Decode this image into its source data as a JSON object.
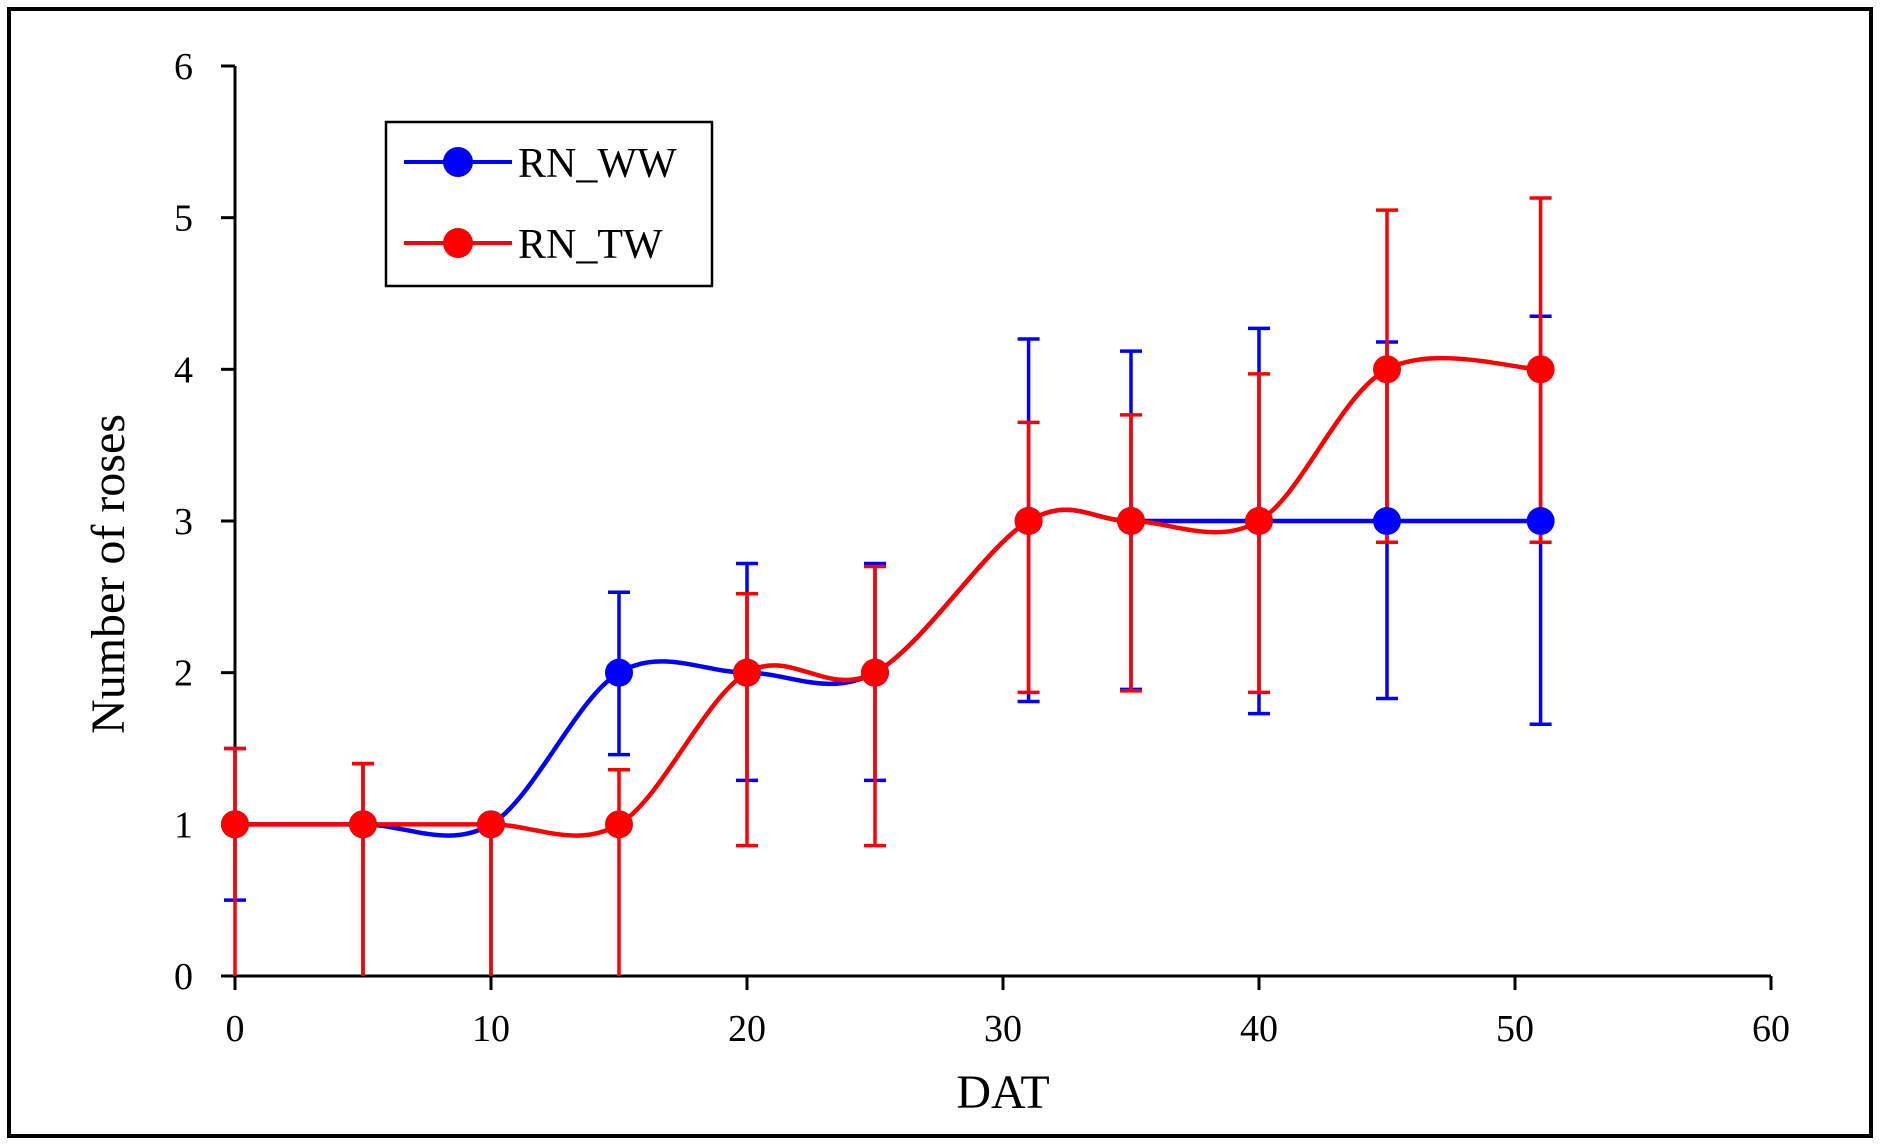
{
  "chart_data": {
    "type": "line",
    "title": "",
    "xlabel": "DAT",
    "ylabel": "Number of roses",
    "xlim": [
      0,
      60
    ],
    "ylim": [
      0,
      6
    ],
    "xticks": [
      0,
      10,
      20,
      30,
      40,
      50,
      60
    ],
    "yticks": [
      0,
      1,
      2,
      3,
      4,
      5,
      6
    ],
    "grid": false,
    "smooth": true,
    "legend_position": "top-left",
    "series": [
      {
        "name": "RN_WW",
        "color": "#0000ff",
        "x": [
          0,
          5,
          10,
          15,
          20,
          25,
          31,
          35,
          40,
          45,
          51
        ],
        "y": [
          1,
          1,
          1,
          2,
          2,
          2,
          3,
          3,
          3,
          3,
          3
        ],
        "err_low": [
          0.5,
          0,
          0,
          1.46,
          1.29,
          1.29,
          1.81,
          1.89,
          1.73,
          1.83,
          1.66
        ],
        "err_high": [
          1.5,
          1.4,
          1,
          2.53,
          2.72,
          2.72,
          4.2,
          4.12,
          4.27,
          4.18,
          4.35
        ]
      },
      {
        "name": "RN_TW",
        "color": "#ff0000",
        "x": [
          0,
          5,
          10,
          15,
          20,
          25,
          31,
          35,
          40,
          45,
          51
        ],
        "y": [
          1,
          1,
          1,
          1,
          2,
          2,
          3,
          3,
          3,
          4,
          4
        ],
        "err_low": [
          0,
          0,
          0,
          0,
          0.86,
          0.86,
          1.87,
          1.88,
          1.87,
          2.86,
          2.86
        ],
        "err_high": [
          1.5,
          1.4,
          1,
          1.36,
          2.52,
          2.7,
          3.65,
          3.7,
          3.97,
          5.05,
          5.13
        ]
      }
    ]
  }
}
